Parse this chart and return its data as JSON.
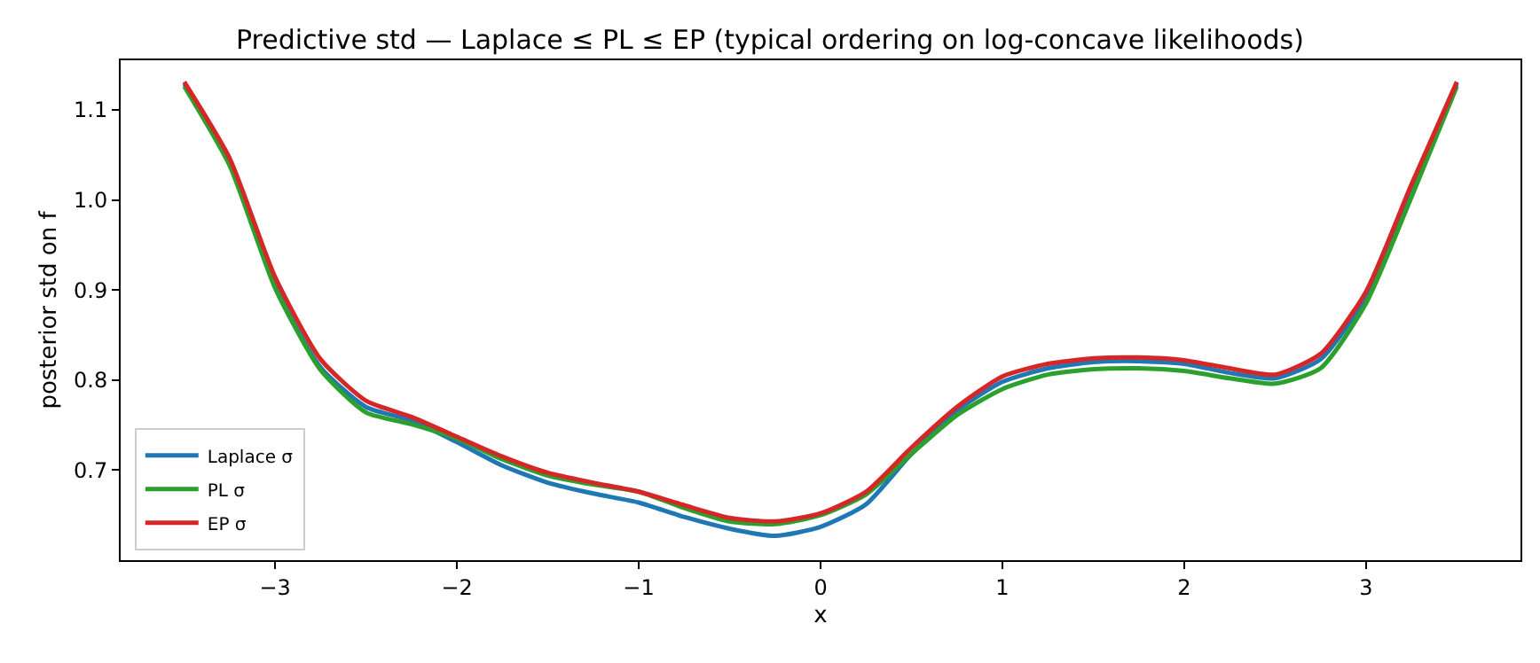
{
  "chart_data": {
    "type": "line",
    "title": "Predictive std — Laplace ≤ PL ≤ EP (typical ordering on log-concave likelihoods)",
    "xlabel": "x",
    "ylabel": "posterior std on f",
    "x": [
      -3.5,
      -3.25,
      -3.0,
      -2.75,
      -2.5,
      -2.25,
      -2.0,
      -1.75,
      -1.5,
      -1.25,
      -1.0,
      -0.75,
      -0.5,
      -0.25,
      0.0,
      0.25,
      0.5,
      0.75,
      1.0,
      1.25,
      1.5,
      1.75,
      2.0,
      2.25,
      2.5,
      2.75,
      3.0,
      3.25,
      3.5
    ],
    "series": [
      {
        "name": "Laplace σ",
        "color": "#1f77b4",
        "values": [
          1.129,
          1.04,
          0.904,
          0.814,
          0.77,
          0.755,
          0.731,
          0.705,
          0.686,
          0.674,
          0.664,
          0.648,
          0.635,
          0.627,
          0.637,
          0.662,
          0.718,
          0.766,
          0.798,
          0.813,
          0.82,
          0.821,
          0.818,
          0.808,
          0.802,
          0.823,
          0.892,
          1.011,
          1.129
        ]
      },
      {
        "name": "PL σ",
        "color": "#2ca02c",
        "values": [
          1.126,
          1.038,
          0.902,
          0.811,
          0.764,
          0.751,
          0.735,
          0.712,
          0.694,
          0.684,
          0.676,
          0.658,
          0.643,
          0.64,
          0.65,
          0.673,
          0.718,
          0.761,
          0.79,
          0.806,
          0.812,
          0.813,
          0.81,
          0.802,
          0.796,
          0.813,
          0.885,
          1.003,
          1.126
        ]
      },
      {
        "name": "EP σ",
        "color": "#d62728",
        "values": [
          1.131,
          1.046,
          0.914,
          0.823,
          0.777,
          0.759,
          0.737,
          0.715,
          0.697,
          0.686,
          0.676,
          0.661,
          0.647,
          0.643,
          0.652,
          0.676,
          0.725,
          0.77,
          0.804,
          0.818,
          0.824,
          0.825,
          0.822,
          0.813,
          0.806,
          0.829,
          0.898,
          1.017,
          1.131
        ]
      }
    ],
    "xlim": [
      -3.85,
      3.85
    ],
    "xticks": [
      {
        "value": -3,
        "label": "−3"
      },
      {
        "value": -2,
        "label": "−2"
      },
      {
        "value": -1,
        "label": "−1"
      },
      0,
      1,
      2,
      3
    ],
    "ylim": [
      0.6,
      1.155
    ],
    "yticks": [
      0.7,
      0.8,
      0.9,
      {
        "value": 1,
        "label": "1.0"
      },
      1.1
    ],
    "legend": "bottom left",
    "marker": "none",
    "line_style": "solid"
  }
}
